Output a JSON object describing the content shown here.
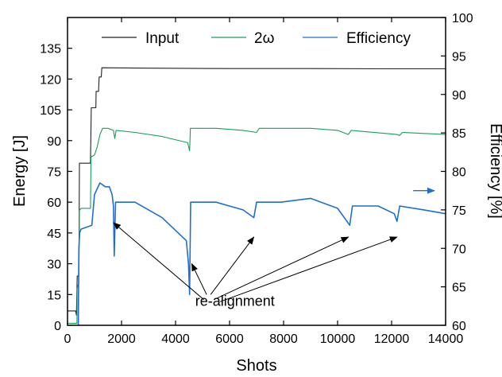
{
  "chart_data": {
    "type": "line",
    "title": "",
    "xlabel": "Shots",
    "ylabel_left": "Energy [J]",
    "ylabel_right": "Efficiency [%]",
    "xlim": [
      0,
      14000
    ],
    "ylim_left": [
      0,
      150
    ],
    "ylim_right": [
      60,
      100
    ],
    "x_ticks": [
      "0",
      "2000",
      "4000",
      "6000",
      "8000",
      "10000",
      "12000",
      "14000"
    ],
    "y_left_ticks": [
      "0",
      "15",
      "30",
      "45",
      "60",
      "75",
      "90",
      "105",
      "120",
      "135"
    ],
    "y_right_ticks": [
      "60",
      "65",
      "70",
      "75",
      "80",
      "85",
      "90",
      "95",
      "100"
    ],
    "grid": false,
    "legend_position": "top",
    "series": [
      {
        "name": "Input",
        "axis": "left",
        "color": "#222222",
        "points": [
          [
            0,
            7
          ],
          [
            300,
            7
          ],
          [
            330,
            5
          ],
          [
            360,
            24
          ],
          [
            420,
            24
          ],
          [
            440,
            79
          ],
          [
            850,
            79
          ],
          [
            880,
            106
          ],
          [
            1050,
            106
          ],
          [
            1060,
            114
          ],
          [
            1150,
            114
          ],
          [
            1170,
            121
          ],
          [
            1250,
            121
          ],
          [
            1270,
            125.5
          ],
          [
            3000,
            125.3
          ],
          [
            6000,
            125.1
          ],
          [
            9000,
            125.1
          ],
          [
            12000,
            125.0
          ],
          [
            14000,
            125.0
          ]
        ]
      },
      {
        "name": "2ω",
        "axis": "left",
        "color": "#1a9e5a",
        "points": [
          [
            0,
            1
          ],
          [
            350,
            1
          ],
          [
            360,
            18
          ],
          [
            420,
            21
          ],
          [
            440,
            56
          ],
          [
            500,
            57
          ],
          [
            850,
            57
          ],
          [
            870,
            82
          ],
          [
            1000,
            83
          ],
          [
            1100,
            87
          ],
          [
            1200,
            93
          ],
          [
            1300,
            96
          ],
          [
            1500,
            96
          ],
          [
            1700,
            95
          ],
          [
            1750,
            91
          ],
          [
            1800,
            95
          ],
          [
            2500,
            94
          ],
          [
            3500,
            92
          ],
          [
            4450,
            89
          ],
          [
            4520,
            85
          ],
          [
            4550,
            96
          ],
          [
            5500,
            96
          ],
          [
            6500,
            95
          ],
          [
            7000,
            94
          ],
          [
            7100,
            96
          ],
          [
            9000,
            96
          ],
          [
            10000,
            95
          ],
          [
            10400,
            93
          ],
          [
            10500,
            95
          ],
          [
            12200,
            93
          ],
          [
            12300,
            92.5
          ],
          [
            12400,
            94
          ],
          [
            14000,
            93
          ]
        ]
      },
      {
        "name": "Efficiency",
        "axis": "right",
        "color": "#1f6fd1",
        "points": [
          [
            400,
            60
          ],
          [
            420,
            70
          ],
          [
            450,
            72
          ],
          [
            500,
            72.5
          ],
          [
            900,
            73
          ],
          [
            950,
            75
          ],
          [
            1000,
            77
          ],
          [
            1200,
            78.5
          ],
          [
            1400,
            78
          ],
          [
            1550,
            78
          ],
          [
            1650,
            77
          ],
          [
            1700,
            75.5
          ],
          [
            1730,
            69
          ],
          [
            1780,
            76
          ],
          [
            2500,
            76
          ],
          [
            3500,
            74
          ],
          [
            4400,
            71
          ],
          [
            4480,
            68
          ],
          [
            4520,
            64
          ],
          [
            4560,
            76
          ],
          [
            5500,
            76
          ],
          [
            6500,
            75
          ],
          [
            6900,
            74
          ],
          [
            7000,
            76
          ],
          [
            7900,
            76
          ],
          [
            9000,
            76.5
          ],
          [
            10000,
            75.2
          ],
          [
            10450,
            73
          ],
          [
            10550,
            75.5
          ],
          [
            11500,
            75.5
          ],
          [
            12100,
            74.5
          ],
          [
            12200,
            73.5
          ],
          [
            12300,
            75.5
          ],
          [
            13200,
            75
          ],
          [
            14000,
            74.5
          ]
        ]
      }
    ],
    "annotations": [
      {
        "type": "label",
        "text": "re-alignment",
        "x": 6200,
        "y_left": 9.5
      },
      {
        "type": "arrow",
        "from": [
          5050,
          12.5
        ],
        "to": [
          1700,
          50
        ]
      },
      {
        "type": "arrow",
        "from": [
          5150,
          15
        ],
        "to": [
          4600,
          30
        ]
      },
      {
        "type": "arrow",
        "from": [
          5300,
          15
        ],
        "to": [
          6900,
          43
        ]
      },
      {
        "type": "arrow",
        "from": [
          5500,
          13
        ],
        "to": [
          10400,
          43
        ]
      },
      {
        "type": "arrow",
        "from": [
          5650,
          11.5
        ],
        "to": [
          12200,
          43
        ]
      },
      {
        "type": "arrow",
        "color": "#1f6fd1",
        "from_right": [
          12800,
          77.5
        ],
        "to_right": [
          14000,
          77.5
        ]
      }
    ]
  }
}
